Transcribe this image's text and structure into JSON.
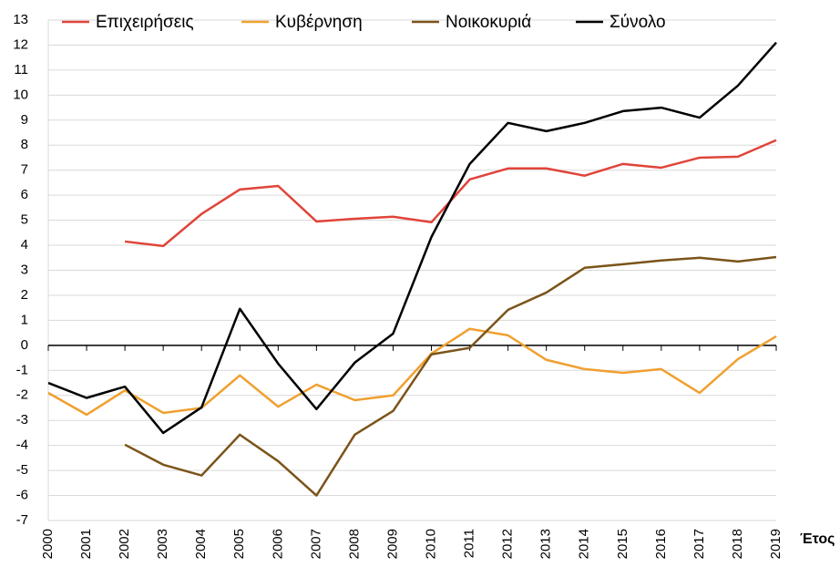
{
  "chart_data": {
    "type": "line",
    "categories": [
      "2000",
      "2001",
      "2002",
      "2003",
      "2004",
      "2005",
      "2006",
      "2007",
      "2008",
      "2009",
      "2010",
      "2011",
      "2012",
      "2013",
      "2014",
      "2015",
      "2016",
      "2017",
      "2018",
      "2019"
    ],
    "x_label": "Έτος",
    "series": [
      {
        "name": "Επιχειρήσεις",
        "color": "#e0443a",
        "values": [
          null,
          null,
          4.15,
          3.97,
          5.25,
          6.23,
          6.37,
          4.95,
          5.06,
          5.14,
          4.92,
          6.63,
          7.07,
          7.07,
          6.78,
          7.25,
          7.1,
          7.5,
          7.54,
          8.2
        ]
      },
      {
        "name": "Κυβέρνηση",
        "color": "#f0a030",
        "values": [
          -1.9,
          -2.77,
          -1.8,
          -2.7,
          -2.5,
          -1.2,
          -2.45,
          -1.57,
          -2.19,
          -2.0,
          -0.33,
          0.66,
          0.4,
          -0.58,
          -0.95,
          -1.1,
          -0.95,
          -1.9,
          -0.55,
          0.36
        ]
      },
      {
        "name": "Νοικοκυριά",
        "color": "#7b5419",
        "values": [
          null,
          null,
          -3.97,
          -4.77,
          -5.2,
          -3.57,
          -4.63,
          -6.0,
          -3.57,
          -2.62,
          -0.36,
          -0.1,
          1.42,
          2.11,
          3.1,
          3.24,
          3.39,
          3.5,
          3.35,
          3.53
        ]
      },
      {
        "name": "Σύνολο",
        "color": "#000000",
        "values": [
          -1.5,
          -2.1,
          -1.65,
          -3.5,
          -2.48,
          1.46,
          -0.73,
          -2.55,
          -0.69,
          0.47,
          4.33,
          7.25,
          8.89,
          8.56,
          8.89,
          9.36,
          9.5,
          9.1,
          10.38,
          12.1
        ]
      }
    ],
    "ylim": [
      -7,
      13
    ],
    "yticks": [
      -7,
      -6,
      -5,
      -4,
      -3,
      -2,
      -1,
      0,
      1,
      2,
      3,
      4,
      5,
      6,
      7,
      8,
      9,
      10,
      11,
      12,
      13
    ],
    "grid": true
  }
}
